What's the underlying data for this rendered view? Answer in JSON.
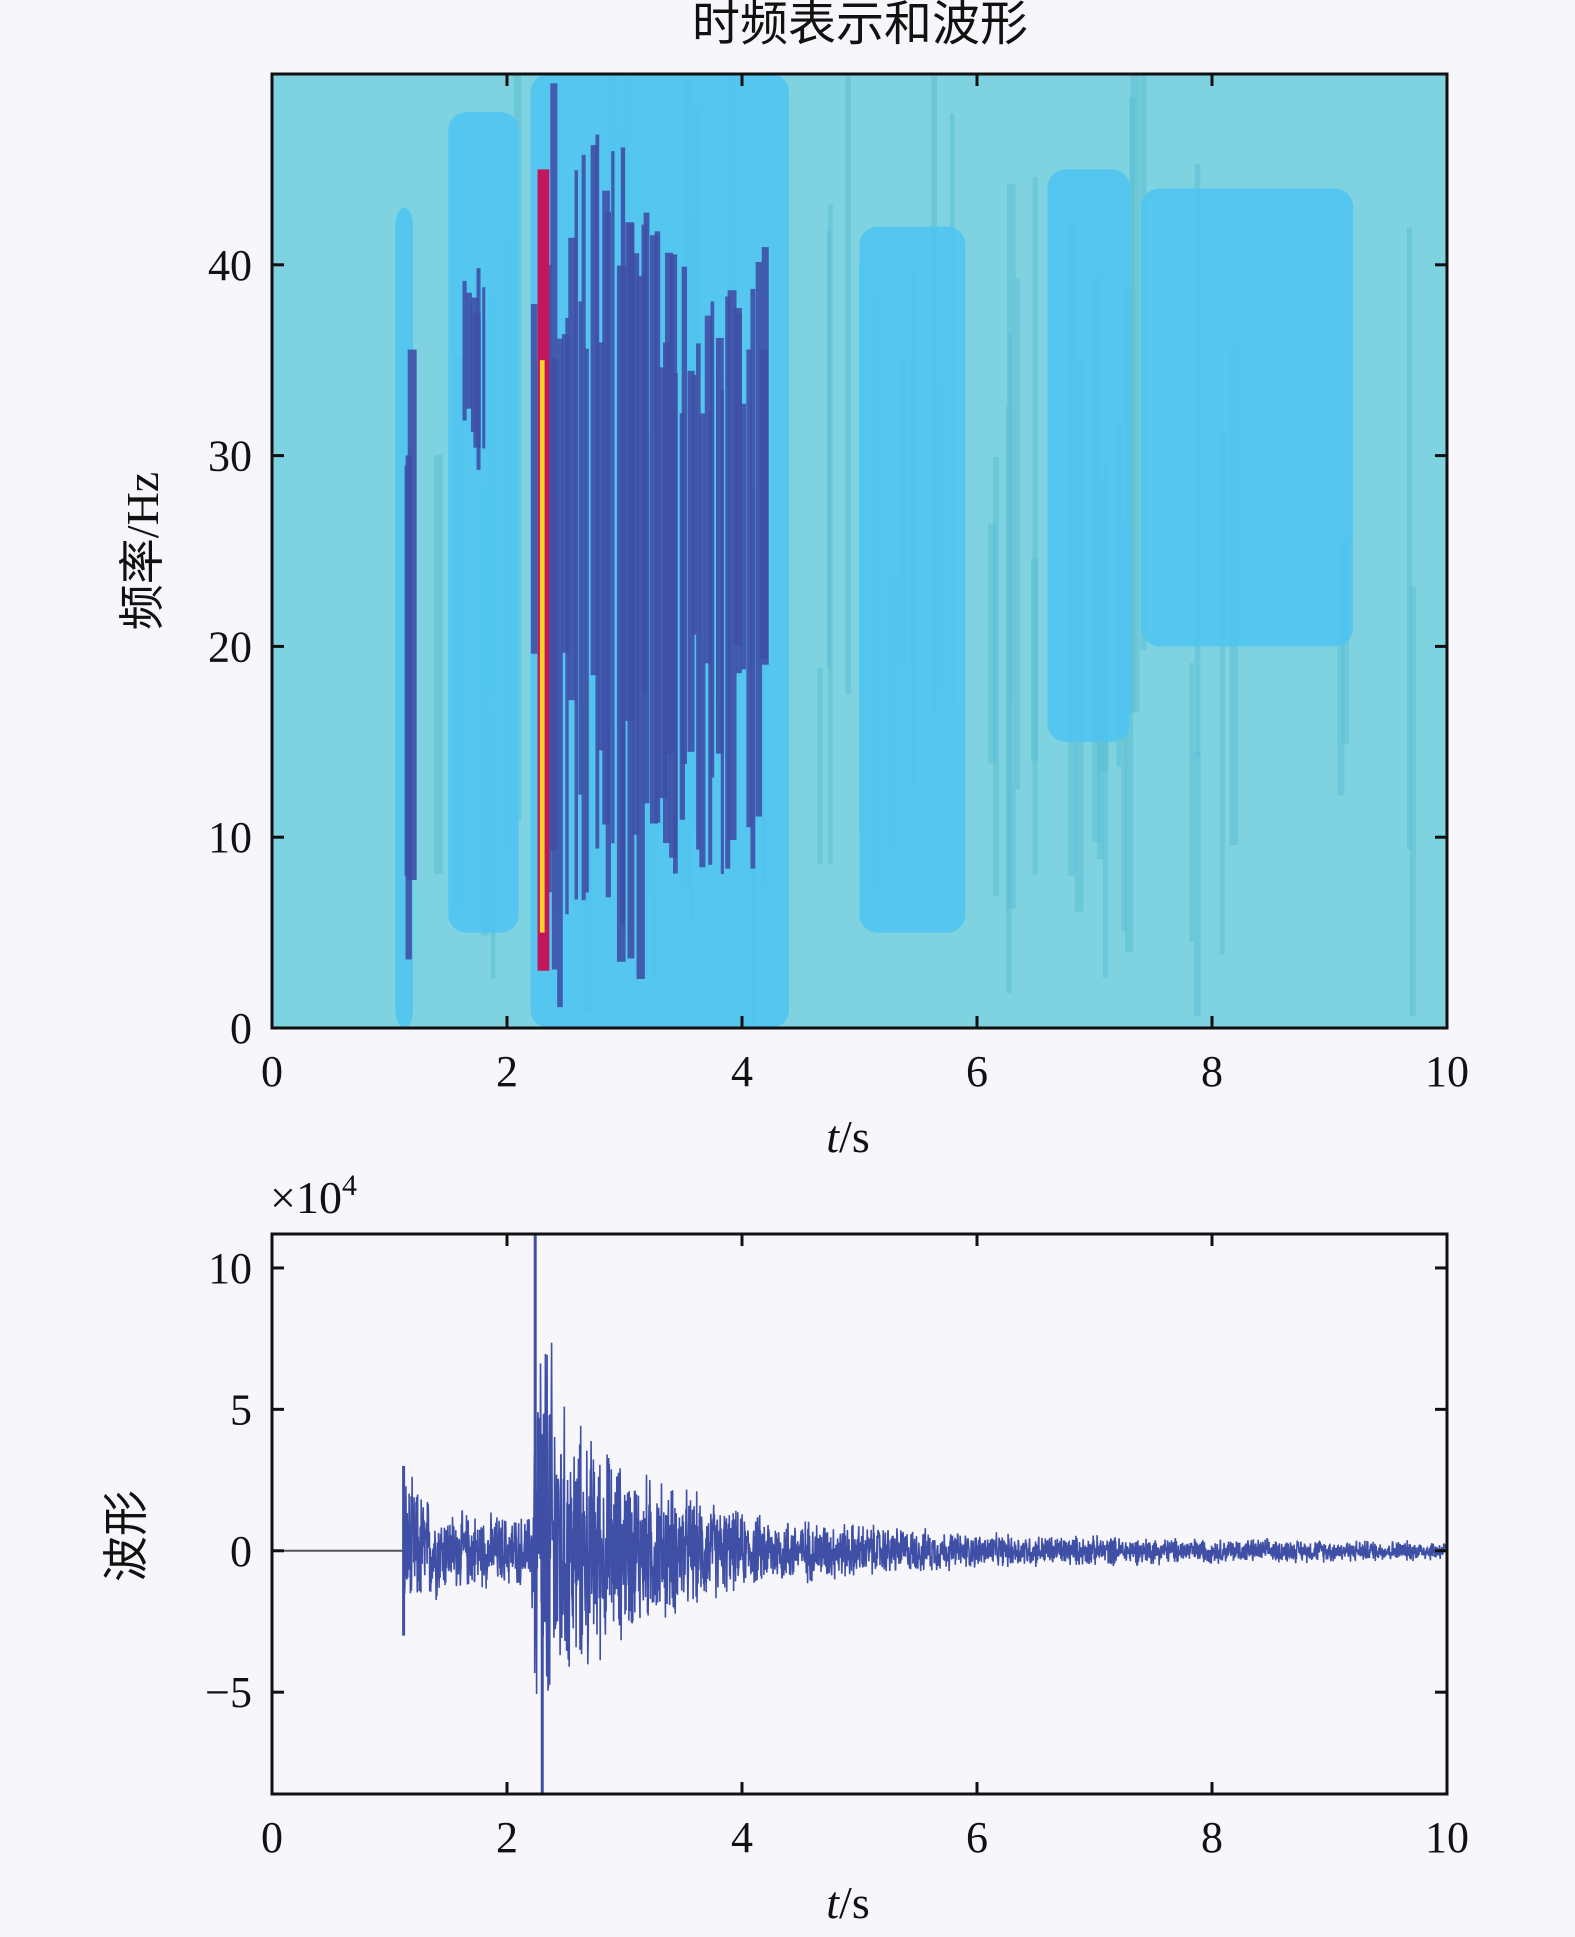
{
  "chart_data": [
    {
      "type": "heatmap",
      "title": "时频表示和波形",
      "xlabel_var": "t",
      "xlabel_unit": "/s",
      "ylabel": "频率/Hz",
      "xlim": [
        0,
        10
      ],
      "ylim": [
        0,
        50
      ],
      "xticks": [
        0,
        2,
        4,
        6,
        8,
        10
      ],
      "yticks": [
        0,
        10,
        20,
        30,
        40
      ],
      "grid": false,
      "colormap": {
        "background": "#7fd3e0",
        "low": "#4cc3f2",
        "mid": "#3f4fa6",
        "high": "#c2185b",
        "peak": "#f5d426"
      },
      "regions": [
        {
          "t0": 1.05,
          "t1": 1.2,
          "f0": 0,
          "f1": 43,
          "level": "low"
        },
        {
          "t0": 1.12,
          "t1": 1.16,
          "f0": 2,
          "f1": 36,
          "level": "mid"
        },
        {
          "t0": 1.5,
          "t1": 2.1,
          "f0": 5,
          "f1": 48,
          "level": "low"
        },
        {
          "t0": 1.6,
          "t1": 1.8,
          "f0": 28,
          "f1": 40,
          "level": "mid"
        },
        {
          "t0": 2.2,
          "t1": 4.4,
          "f0": 0,
          "f1": 50,
          "level": "low"
        },
        {
          "t0": 2.2,
          "t1": 2.45,
          "f0": 0,
          "f1": 50,
          "level": "mid"
        },
        {
          "t0": 2.26,
          "t1": 2.36,
          "f0": 3,
          "f1": 45,
          "level": "high"
        },
        {
          "t0": 2.28,
          "t1": 2.32,
          "f0": 5,
          "f1": 35,
          "level": "peak"
        },
        {
          "t0": 2.45,
          "t1": 3.3,
          "f0": 2,
          "f1": 47,
          "level": "mid"
        },
        {
          "t0": 3.3,
          "t1": 4.2,
          "f0": 8,
          "f1": 42,
          "level": "mid"
        },
        {
          "t0": 5.0,
          "t1": 5.9,
          "f0": 5,
          "f1": 42,
          "level": "low"
        },
        {
          "t0": 6.6,
          "t1": 7.3,
          "f0": 15,
          "f1": 45,
          "level": "low"
        },
        {
          "t0": 7.4,
          "t1": 9.2,
          "f0": 20,
          "f1": 44,
          "level": "low"
        }
      ]
    },
    {
      "type": "line",
      "ylabel": "波形",
      "xlabel_var": "t",
      "xlabel_unit": "/s",
      "y_multiplier_base": "×10",
      "y_multiplier_exp": "4",
      "xlim": [
        0,
        10
      ],
      "ylim": [
        -8.6,
        11.2
      ],
      "xticks": [
        0,
        2,
        4,
        6,
        8,
        10
      ],
      "yticks": [
        -5,
        0,
        5,
        10
      ],
      "y_tick_labels": [
        "−5",
        "0",
        "5",
        "10"
      ],
      "grid": false,
      "series": [
        {
          "color": "#3f4fa6",
          "onset_t": 1.12,
          "main_arrival_t": 2.27,
          "peak_max": 11.2,
          "peak_min": -8.6,
          "envelope": [
            [
              0,
              0
            ],
            [
              1.1,
              0
            ],
            [
              1.12,
              3
            ],
            [
              1.5,
              1.6
            ],
            [
              2.2,
              1.4
            ],
            [
              2.27,
              11.2
            ],
            [
              2.5,
              5.5
            ],
            [
              3.0,
              3.5
            ],
            [
              4.0,
              1.5
            ],
            [
              6.0,
              0.7
            ],
            [
              8.0,
              0.5
            ],
            [
              10.0,
              0.4
            ]
          ]
        }
      ]
    }
  ]
}
